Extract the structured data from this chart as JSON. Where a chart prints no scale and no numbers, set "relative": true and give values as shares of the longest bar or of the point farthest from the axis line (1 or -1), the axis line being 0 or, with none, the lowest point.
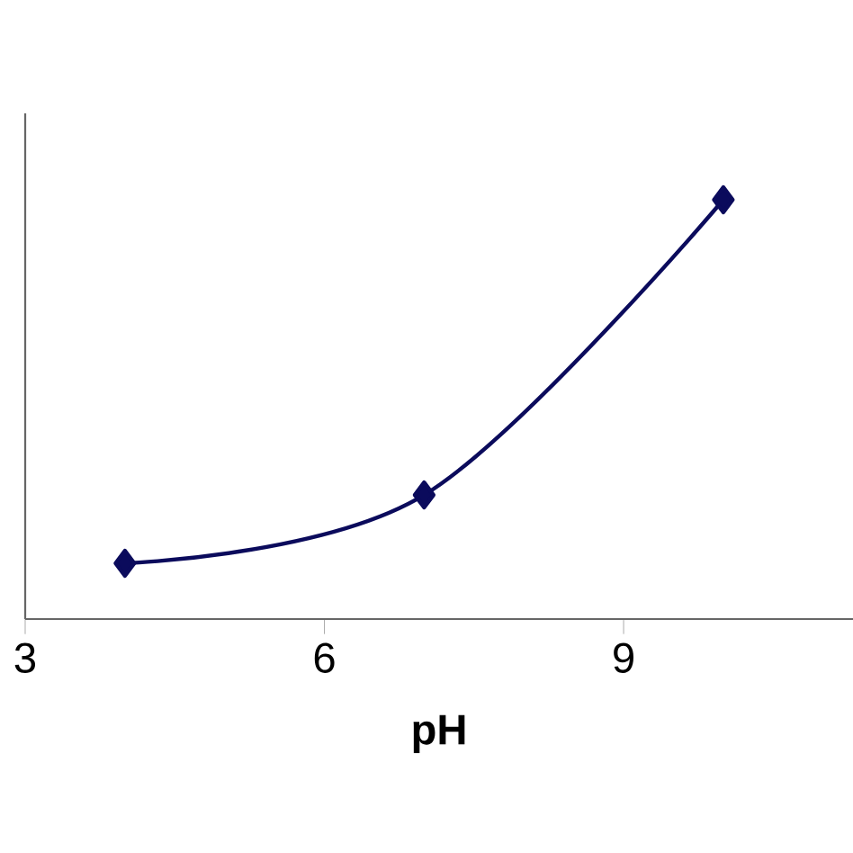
{
  "chart_data": {
    "type": "line",
    "xlabel": "pH",
    "relative": true,
    "x": [
      4,
      7,
      10
    ],
    "series": [
      {
        "color": "#0b0b5c",
        "values": [
          0.133,
          0.296,
          1.0
        ]
      }
    ],
    "xlim": [
      3,
      11.3
    ],
    "xticks": [
      3,
      6,
      9
    ],
    "marker": "diamond",
    "line_style": "solid",
    "grid": false
  }
}
